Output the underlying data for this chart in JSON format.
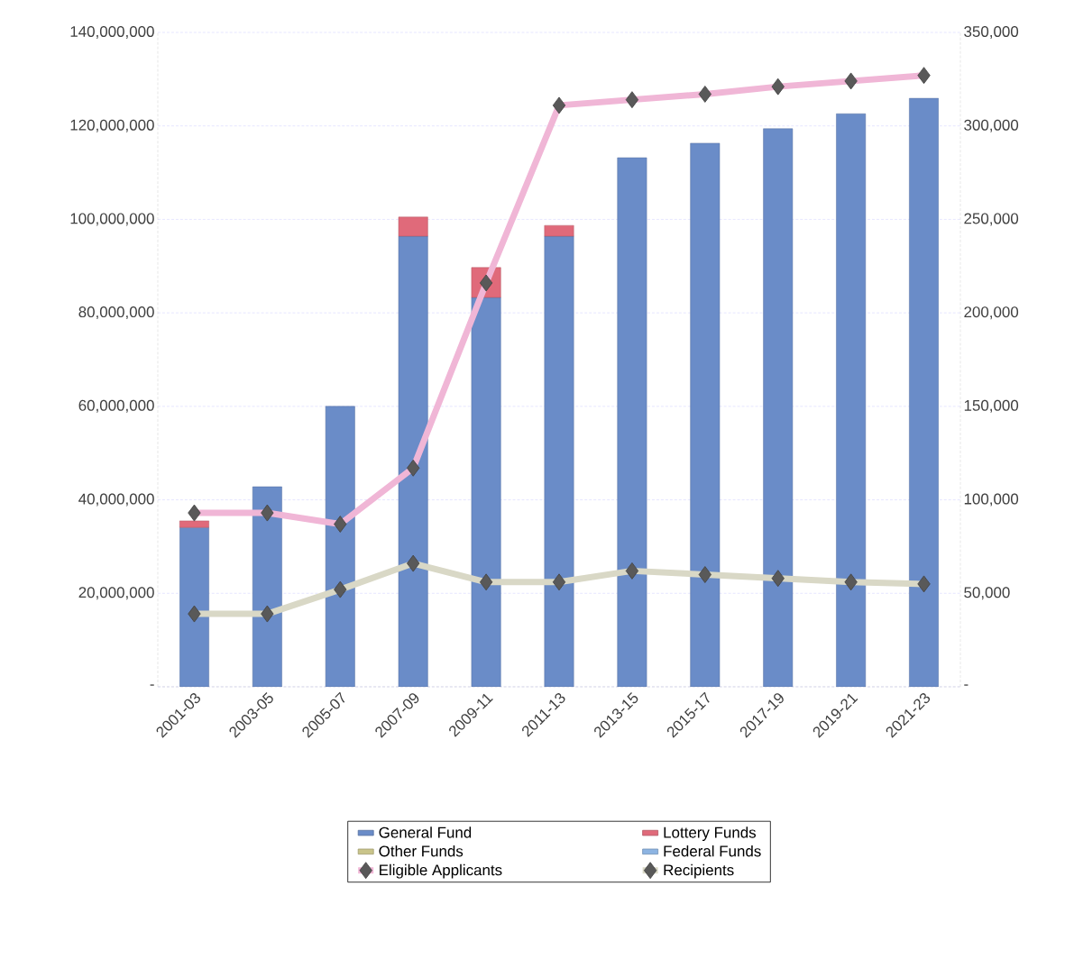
{
  "chart_data": {
    "type": "bar",
    "stacked": true,
    "categories": [
      "2001-03",
      "2003-05",
      "2005-07",
      "2007-09",
      "2009-11",
      "2011-13",
      "2013-15",
      "2015-17",
      "2017-19",
      "2019-21",
      "2021-23"
    ],
    "series": [
      {
        "name": "General Fund",
        "color": "#6a8cc8",
        "values": [
          34100000,
          42800000,
          60000000,
          96400000,
          83300000,
          96400000,
          113200000,
          116300000,
          119400000,
          122600000,
          125900000
        ]
      },
      {
        "name": "Lottery Funds",
        "color": "#e06a7a",
        "values": [
          1400000,
          0,
          0,
          4100000,
          6400000,
          2300000,
          0,
          0,
          0,
          0,
          0
        ]
      },
      {
        "name": "Other Funds",
        "color": "#c9c48a",
        "values": [
          0,
          0,
          0,
          0,
          0,
          0,
          0,
          0,
          0,
          0,
          0
        ]
      },
      {
        "name": "Federal Funds",
        "color": "#8db4e2",
        "values": [
          0,
          0,
          0,
          0,
          0,
          0,
          0,
          0,
          0,
          0,
          0
        ]
      },
      {
        "name": "Eligible Applicants",
        "type": "line",
        "axis": "y2",
        "marker": "diamond",
        "color": "#f0b6d6",
        "values": [
          93000,
          93000,
          87000,
          117000,
          216000,
          311000,
          314000,
          317000,
          321000,
          324000,
          327000
        ]
      },
      {
        "name": "Recipients",
        "type": "line",
        "axis": "y2",
        "marker": "diamond",
        "color": "#d9d8c6",
        "values": [
          39000,
          39000,
          52000,
          66000,
          56000,
          56000,
          62000,
          60000,
          58000,
          56000,
          55000
        ]
      }
    ],
    "ylim": [
      0,
      140000000
    ],
    "yticks": [
      {
        "value": 0,
        "label": "-"
      },
      {
        "value": 20000000,
        "label": "20,000,000"
      },
      {
        "value": 40000000,
        "label": "40,000,000"
      },
      {
        "value": 60000000,
        "label": "60,000,000"
      },
      {
        "value": 80000000,
        "label": "80,000,000"
      },
      {
        "value": 100000000,
        "label": "100,000,000"
      },
      {
        "value": 120000000,
        "label": "120,000,000"
      },
      {
        "value": 140000000,
        "label": "140,000,000"
      }
    ],
    "y2lim": [
      0,
      350000
    ],
    "y2ticks": [
      {
        "value": 0,
        "label": "-"
      },
      {
        "value": 50000,
        "label": "50,000"
      },
      {
        "value": 100000,
        "label": "100,000"
      },
      {
        "value": 150000,
        "label": "150,000"
      },
      {
        "value": 200000,
        "label": "200,000"
      },
      {
        "value": 250000,
        "label": "250,000"
      },
      {
        "value": 300000,
        "label": "300,000"
      },
      {
        "value": 350000,
        "label": "350,000"
      }
    ],
    "grid": "y",
    "legend": "bottom"
  }
}
